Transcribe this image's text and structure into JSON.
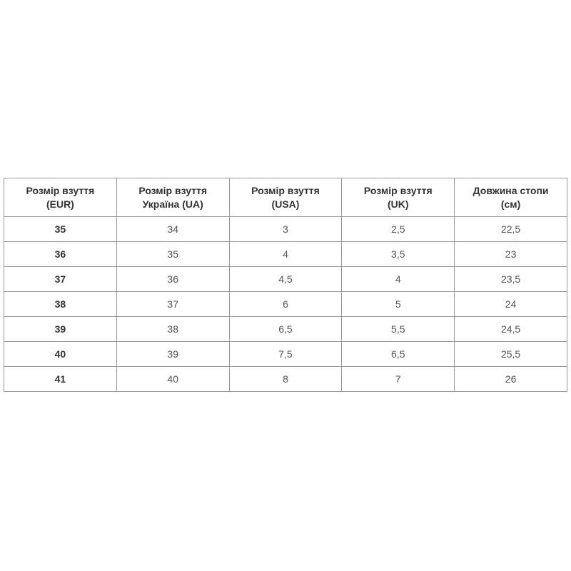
{
  "table": {
    "headers": [
      [
        "Розмір взуття",
        "(EUR)"
      ],
      [
        "Розмір взуття",
        "Україна (UA)"
      ],
      [
        "Розмір взуття",
        "(USA)"
      ],
      [
        "Розмір взуття",
        "(UK)"
      ],
      [
        "Довжина стопи",
        "(см)"
      ]
    ],
    "rows": [
      [
        "35",
        "34",
        "3",
        "2,5",
        "22,5"
      ],
      [
        "36",
        "35",
        "4",
        "3,5",
        "23"
      ],
      [
        "37",
        "36",
        "4,5",
        "4",
        "23,5"
      ],
      [
        "38",
        "37",
        "6",
        "5",
        "24"
      ],
      [
        "39",
        "38",
        "6,5",
        "5,5",
        "24,5"
      ],
      [
        "40",
        "39",
        "7,5",
        "6,5",
        "25,5"
      ],
      [
        "41",
        "40",
        "8",
        "7",
        "26"
      ]
    ]
  }
}
